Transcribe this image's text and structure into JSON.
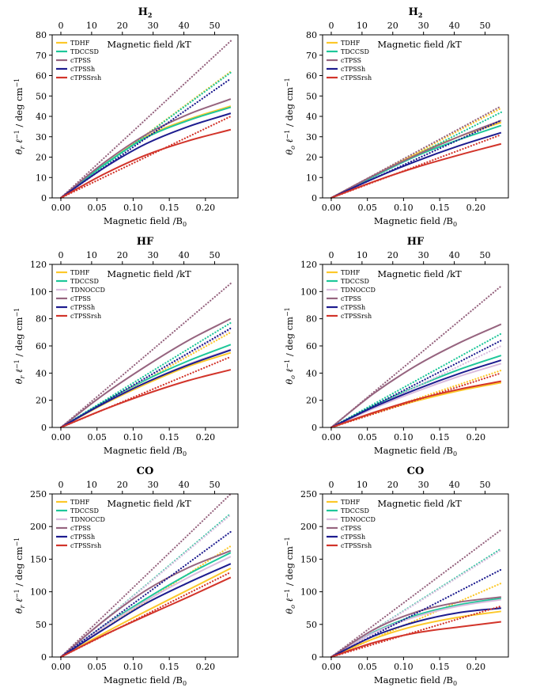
{
  "figure": {
    "top_axis_label": "Magnetic field /kT",
    "bottom_axis_label": "Magnetic field /B0",
    "bottom_axis_label_sub": "0",
    "left_axis_label_r": "θr ℓ⁻¹ / deg cm⁻¹",
    "left_axis_label_o": "θo ℓ⁻¹ / deg cm⁻¹"
  },
  "series_styles": {
    "TDHF": {
      "color": "#fcc82a"
    },
    "TDCCSD": {
      "color": "#1ec79a"
    },
    "TDNOCCD": {
      "color": "#d9bcde"
    },
    "cTPSS": {
      "color": "#96647f"
    },
    "cTPSSh": {
      "color": "#1d1c8f"
    },
    "cTPSSrsh": {
      "color": "#d2342a"
    }
  },
  "chart_data": [
    {
      "type": "line",
      "title": "H₂",
      "title_main": "H",
      "title_sub": "2",
      "quantity": "theta_r",
      "xlabel": "Magnetic field /B0",
      "x2label": "Magnetic field /kT",
      "ylabel": "θr ℓ⁻¹ / deg cm⁻¹",
      "xlim": [
        -0.012,
        0.245
      ],
      "ylim": [
        0,
        80
      ],
      "xticks": [
        "0.00",
        "0.05",
        "0.10",
        "0.15",
        "0.20"
      ],
      "yticks": [
        "0",
        "10",
        "20",
        "30",
        "40",
        "50",
        "60",
        "70",
        "80"
      ],
      "x2ticks": [
        "0",
        "10",
        "20",
        "30",
        "40",
        "50"
      ],
      "x_max": 0.235,
      "series": [
        {
          "name": "TDHF",
          "solid": [
            0,
            16,
            30,
            38.5,
            45
          ],
          "dotted_end": 62
        },
        {
          "name": "TDCCSD",
          "solid": [
            0,
            16,
            29.5,
            38,
            44.5
          ],
          "dotted_end": 61.5
        },
        {
          "name": "cTPSS",
          "solid": [
            0,
            17,
            31,
            41,
            48.5
          ],
          "dotted_end": 77
        },
        {
          "name": "cTPSSh",
          "solid": [
            0,
            14.5,
            26.5,
            35,
            41.5
          ],
          "dotted_end": 58.5
        },
        {
          "name": "cTPSSrsh",
          "solid": [
            0,
            11.5,
            21,
            28,
            33.5
          ],
          "dotted_end": 40
        }
      ]
    },
    {
      "type": "line",
      "title": "H₂",
      "title_main": "H",
      "title_sub": "2",
      "quantity": "theta_o",
      "xlabel": "Magnetic field /B0",
      "x2label": "Magnetic field /kT",
      "ylabel": "θo ℓ⁻¹ / deg cm⁻¹",
      "xlim": [
        -0.012,
        0.245
      ],
      "ylim": [
        0,
        80
      ],
      "xticks": [
        "0.00",
        "0.05",
        "0.10",
        "0.15",
        "0.20"
      ],
      "yticks": [
        "0",
        "10",
        "20",
        "30",
        "40",
        "50",
        "60",
        "70",
        "80"
      ],
      "x2ticks": [
        "0",
        "10",
        "20",
        "30",
        "40",
        "50"
      ],
      "x_max": 0.235,
      "series": [
        {
          "name": "TDHF",
          "solid": [
            0,
            11,
            21.5,
            30,
            37
          ],
          "dotted_end": 44
        },
        {
          "name": "TDCCSD",
          "solid": [
            0,
            10.5,
            20.5,
            28.5,
            35.5
          ],
          "dotted_end": 42
        },
        {
          "name": "cTPSS",
          "solid": [
            0,
            11,
            21,
            30,
            38
          ],
          "dotted_end": 45
        },
        {
          "name": "cTPSSh",
          "solid": [
            0,
            9.5,
            18,
            25.5,
            32
          ],
          "dotted_end": 38
        },
        {
          "name": "cTPSSrsh",
          "solid": [
            0,
            8,
            15,
            21,
            26.5
          ],
          "dotted_end": 31
        }
      ]
    },
    {
      "type": "line",
      "title": "HF",
      "title_main": "HF",
      "title_sub": "",
      "quantity": "theta_r",
      "xlabel": "Magnetic field /B0",
      "x2label": "Magnetic field /kT",
      "ylabel": "θr ℓ⁻¹ / deg cm⁻¹",
      "xlim": [
        -0.012,
        0.245
      ],
      "ylim": [
        0,
        120
      ],
      "xticks": [
        "0.00",
        "0.05",
        "0.10",
        "0.15",
        "0.20"
      ],
      "yticks": [
        "0",
        "20",
        "40",
        "60",
        "80",
        "100",
        "120"
      ],
      "x2ticks": [
        "0",
        "10",
        "20",
        "30",
        "40",
        "50"
      ],
      "x_max": 0.235,
      "series": [
        {
          "name": "TDHF",
          "solid": [
            0,
            17,
            32,
            45,
            55
          ],
          "dotted_end": 70
        },
        {
          "name": "TDCCSD",
          "solid": [
            0,
            18.5,
            35,
            49,
            61
          ],
          "dotted_end": 77
        },
        {
          "name": "TDNOCCD",
          "solid": [
            0,
            17.5,
            33,
            46.5,
            57.5
          ],
          "dotted_end": 72
        },
        {
          "name": "cTPSS",
          "solid": [
            0,
            24,
            45,
            64,
            80
          ],
          "dotted_end": 106
        },
        {
          "name": "cTPSSh",
          "solid": [
            0,
            17.5,
            33,
            46,
            57
          ],
          "dotted_end": 73
        },
        {
          "name": "cTPSSrsh",
          "solid": [
            0,
            13,
            24.5,
            34.5,
            42.5
          ],
          "dotted_end": 52
        }
      ]
    },
    {
      "type": "line",
      "title": "HF",
      "title_main": "HF",
      "title_sub": "",
      "quantity": "theta_o",
      "xlabel": "Magnetic field /B0",
      "x2label": "Magnetic field /kT",
      "ylabel": "θo ℓ⁻¹ / deg cm⁻¹",
      "xlim": [
        -0.012,
        0.245
      ],
      "ylim": [
        0,
        120
      ],
      "xticks": [
        "0.00",
        "0.05",
        "0.10",
        "0.15",
        "0.20"
      ],
      "yticks": [
        "0",
        "20",
        "40",
        "60",
        "80",
        "100",
        "120"
      ],
      "x2ticks": [
        "0",
        "10",
        "20",
        "30",
        "40",
        "50"
      ],
      "x_max": 0.235,
      "series": [
        {
          "name": "TDHF",
          "solid": [
            0,
            10.5,
            19.5,
            27,
            33
          ],
          "dotted_end": 42
        },
        {
          "name": "TDCCSD",
          "solid": [
            0,
            16,
            30,
            42.5,
            53
          ],
          "dotted_end": 69
        },
        {
          "name": "TDNOCCD",
          "solid": [
            0,
            14,
            26.5,
            37.5,
            47
          ],
          "dotted_end": 60
        },
        {
          "name": "cTPSS",
          "solid": [
            0,
            25,
            45.5,
            62,
            76
          ],
          "dotted_end": 104
        },
        {
          "name": "cTPSSh",
          "solid": [
            0,
            15,
            28,
            39.5,
            49.5
          ],
          "dotted_end": 64
        },
        {
          "name": "cTPSSrsh",
          "solid": [
            0,
            11,
            20.5,
            28,
            34
          ],
          "dotted_end": 40
        }
      ]
    },
    {
      "type": "line",
      "title": "CO",
      "title_main": "CO",
      "title_sub": "",
      "quantity": "theta_r",
      "xlabel": "Magnetic field /B0",
      "x2label": "Magnetic field /kT",
      "ylabel": "θr ℓ⁻¹ / deg cm⁻¹",
      "xlim": [
        -0.012,
        0.245
      ],
      "ylim": [
        0,
        250
      ],
      "xticks": [
        "0.00",
        "0.05",
        "0.10",
        "0.15",
        "0.20"
      ],
      "yticks": [
        "0",
        "50",
        "100",
        "150",
        "200",
        "250"
      ],
      "x2ticks": [
        "0",
        "10",
        "20",
        "30",
        "40",
        "50"
      ],
      "x_max": 0.235,
      "series": [
        {
          "name": "TDHF",
          "solid": [
            0,
            36,
            70,
            103,
            136
          ],
          "dotted_end": 170
        },
        {
          "name": "TDCCSD",
          "solid": [
            0,
            47,
            89,
            127,
            160
          ],
          "dotted_end": 220
        },
        {
          "name": "TDNOCCD",
          "solid": [
            0,
            46,
            86,
            122,
            154
          ],
          "dotted_end": 218
        },
        {
          "name": "cTPSS",
          "solid": [
            0,
            55,
            102,
            137,
            163
          ],
          "dotted_end": 250
        },
        {
          "name": "cTPSSh",
          "solid": [
            0,
            42,
            82,
            114,
            143
          ],
          "dotted_end": 192
        },
        {
          "name": "cTPSSrsh",
          "solid": [
            0,
            33,
            63,
            92,
            122
          ],
          "dotted_end": 130
        }
      ]
    },
    {
      "type": "line",
      "title": "CO",
      "title_main": "CO",
      "title_sub": "",
      "quantity": "theta_o",
      "xlabel": "Magnetic field /B0",
      "x2label": "Magnetic field /kT",
      "ylabel": "θo ℓ⁻¹ / deg cm⁻¹",
      "xlim": [
        -0.012,
        0.245
      ],
      "ylim": [
        0,
        250
      ],
      "xticks": [
        "0.00",
        "0.05",
        "0.10",
        "0.15",
        "0.20"
      ],
      "yticks": [
        "0",
        "50",
        "100",
        "150",
        "200",
        "250"
      ],
      "x2ticks": [
        "0",
        "10",
        "20",
        "30",
        "40",
        "50"
      ],
      "x_max": 0.235,
      "series": [
        {
          "name": "TDHF",
          "solid": [
            0,
            28,
            48,
            61,
            70
          ],
          "dotted_end": 113
        },
        {
          "name": "TDCCSD",
          "solid": [
            0,
            38,
            64,
            80,
            90
          ],
          "dotted_end": 166
        },
        {
          "name": "TDNOCCD",
          "solid": [
            0,
            37,
            62,
            78,
            88
          ],
          "dotted_end": 164
        },
        {
          "name": "cTPSS",
          "solid": [
            0,
            42,
            69,
            84,
            92
          ],
          "dotted_end": 195
        },
        {
          "name": "cTPSSh",
          "solid": [
            0,
            32,
            54,
            68,
            75
          ],
          "dotted_end": 134
        },
        {
          "name": "cTPSSrsh",
          "solid": [
            0,
            22,
            37,
            46,
            54
          ],
          "dotted_end": 78
        }
      ]
    }
  ]
}
